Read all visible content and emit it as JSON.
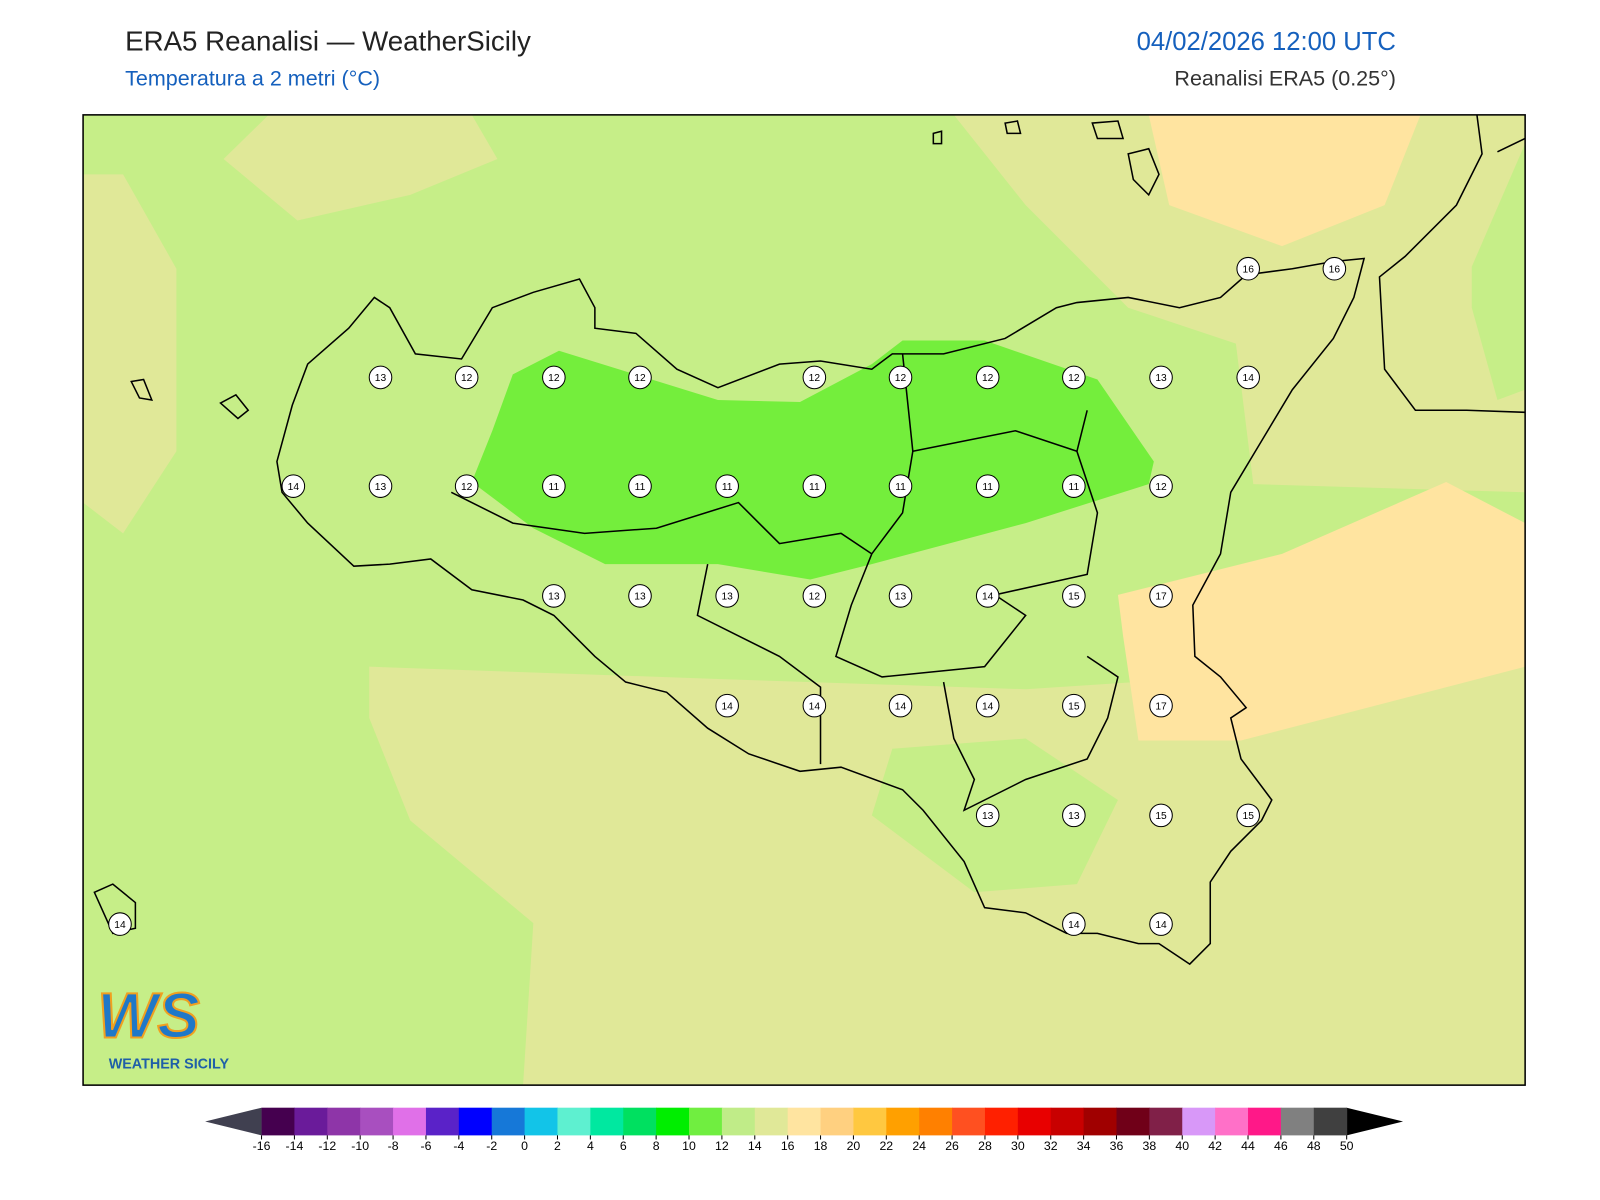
{
  "header": {
    "title": "ERA5 Reanalisi — WeatherSicily",
    "subtitle": "Temperatura a 2 metri (°C)",
    "datetime": "04/02/2026 12:00 UTC",
    "source": "Reanalisi ERA5 (0.25°)"
  },
  "map": {
    "stations": [
      16,
      16,
      13,
      12,
      12,
      12,
      12,
      12,
      12,
      12,
      13,
      14,
      14,
      13,
      12,
      11,
      11,
      11,
      11,
      11,
      11,
      11,
      12,
      13,
      13,
      13,
      12,
      13,
      14,
      15,
      17,
      14,
      14,
      14,
      14,
      15,
      17,
      13,
      13,
      15,
      15,
      14,
      14,
      14
    ]
  },
  "colorbar": {
    "ticks": [
      -16,
      -14,
      -12,
      -10,
      -8,
      -6,
      -4,
      -2,
      0,
      2,
      4,
      6,
      8,
      10,
      12,
      14,
      16,
      18,
      20,
      22,
      24,
      26,
      28,
      30,
      32,
      34,
      36,
      38,
      40,
      42,
      44,
      46,
      48,
      50
    ],
    "colors": [
      "#45004f",
      "#6a1b9a",
      "#8e35a8",
      "#a84fbf",
      "#e070e8",
      "#5a22c8",
      "#0000ff",
      "#1678d8",
      "#12c4e8",
      "#5ef0d0",
      "#00e8a0",
      "#00e060",
      "#00ee00",
      "#70ee40",
      "#c0ec88",
      "#e0e898",
      "#ffe4a0",
      "#ffd080",
      "#ffc840",
      "#ffa000",
      "#ff8000",
      "#ff5020",
      "#ff2000",
      "#e80000",
      "#c80000",
      "#a00000",
      "#700018",
      "#802048",
      "#d898f8",
      "#ff70c8",
      "#ff1888",
      "#808080",
      "#404040"
    ],
    "under": "#404050",
    "over": "#000000"
  },
  "logo": {
    "mark": "WS",
    "text": "WEATHER SICILY"
  }
}
